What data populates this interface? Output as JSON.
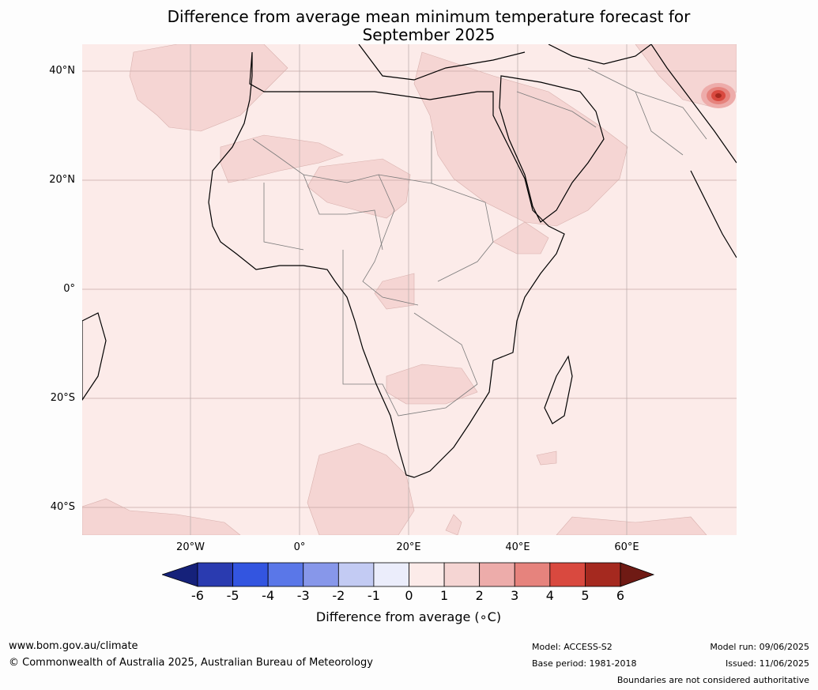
{
  "title_line1": "Difference from average mean minimum temperature forecast for",
  "title_line2": "September 2025",
  "lat_labels": [
    "40°N",
    "20°N",
    "0°",
    "20°S",
    "40°S"
  ],
  "lon_labels": [
    "20°W",
    "0°",
    "20°E",
    "40°E",
    "60°E"
  ],
  "colorbar": {
    "ticks": [
      "-6",
      "-5",
      "-4",
      "-3",
      "-2",
      "-1",
      "0",
      "1",
      "2",
      "3",
      "4",
      "5",
      "6"
    ],
    "colors": [
      "#15217a",
      "#2a3bb0",
      "#3355e0",
      "#5a77e8",
      "#8797ea",
      "#c3cbf3",
      "#ebedfb",
      "#fcebe9",
      "#f5d5d3",
      "#edacaa",
      "#e6837d",
      "#d9493f",
      "#a5291f",
      "#6f1a14"
    ],
    "label": "Difference from average (∘C)"
  },
  "footer": {
    "website": "www.bom.gov.au/climate",
    "copyright": "© Commonwealth of Australia 2025, Australian Bureau of Meteorology",
    "model": "Model: ACCESS-S2",
    "base_period": "Base period: 1981-2018",
    "model_run": "Model run: 09/06/2025",
    "issued": "Issued: 11/06/2025",
    "disclaimer": "Boundaries are not considered authoritative"
  }
}
